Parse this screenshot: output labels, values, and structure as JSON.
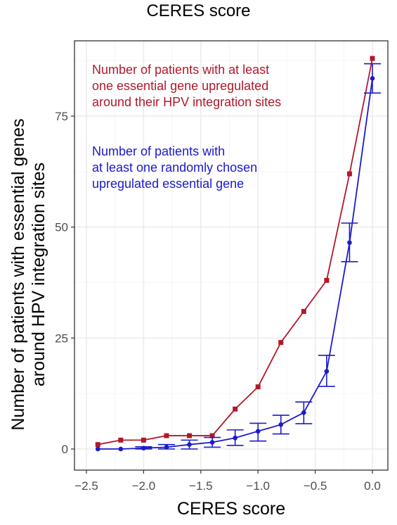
{
  "page": {
    "top_title": "CERES score"
  },
  "colors": {
    "red": "#b2182b",
    "blue": "#1a1acc",
    "grid_major": "#ebebeb",
    "grid_minor": "#f5f5f5",
    "border": "#333333"
  },
  "chart_data": {
    "type": "line",
    "xlabel": "CERES score",
    "ylabel_lines": [
      "Number of patients with essential genes",
      "around HPV integration sites"
    ],
    "xlim": [
      -2.5,
      0
    ],
    "ylim": [
      0,
      87
    ],
    "x_ticks": [
      -2.5,
      -2.0,
      -1.5,
      -1.0,
      -0.5,
      0.0
    ],
    "x_tick_labels": [
      "−2.5",
      "−2.0",
      "−1.5",
      "−1.0",
      "−0.5",
      "0.0"
    ],
    "y_ticks": [
      0,
      25,
      50,
      75
    ],
    "y_tick_labels": [
      "0",
      "25",
      "50",
      "75"
    ],
    "grid": true,
    "x": [
      -2.4,
      -2.2,
      -2.0,
      -1.8,
      -1.6,
      -1.4,
      -1.2,
      -1.0,
      -0.8,
      -0.6,
      -0.4,
      -0.2,
      0.0
    ],
    "series": [
      {
        "color": "#b2182b",
        "values": [
          1,
          2,
          2,
          3,
          3,
          3,
          9,
          14,
          24,
          31,
          38,
          62,
          88
        ],
        "annotation": [
          "Number of patients with at least",
          "one essential gene upregulated",
          "around their HPV integration sites"
        ]
      },
      {
        "color": "#1a1acc",
        "values": [
          0,
          0,
          0.2,
          0.4,
          1,
          1.5,
          2.5,
          4,
          5.5,
          8.2,
          17.5,
          46.5,
          83.5
        ],
        "err_low": [
          0,
          0,
          0,
          0,
          0,
          0.4,
          0.8,
          1.8,
          3.4,
          5.7,
          14.1,
          42.2,
          80.2
        ],
        "err_high": [
          0,
          0,
          0.5,
          1,
          2,
          2.6,
          4.3,
          5.8,
          7.6,
          10.6,
          21.1,
          50.9,
          86.8
        ],
        "annotation": [
          "Number of patients with",
          "at least one randomly chosen",
          "upregulated essential gene"
        ]
      }
    ]
  }
}
